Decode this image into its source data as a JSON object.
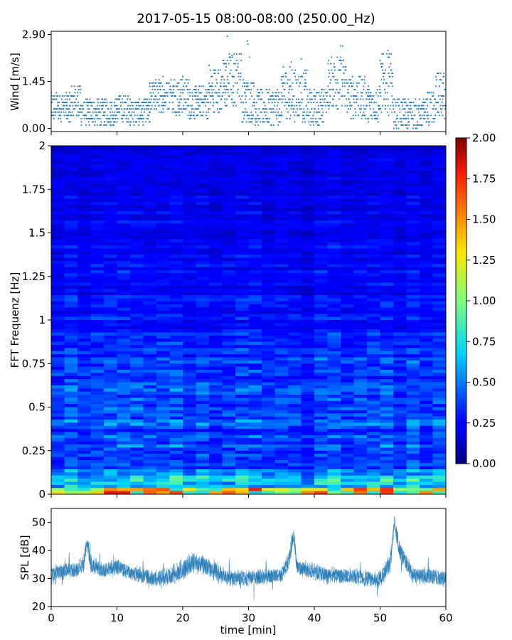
{
  "title": "2017-05-15 08:00-08:00 (250.00_Hz)",
  "chart_data": [
    {
      "type": "scatter",
      "panel": "wind",
      "ylabel": "Wind [m/s]",
      "xlim": [
        0,
        60
      ],
      "ylim": [
        -0.1,
        3.0
      ],
      "yticks": [
        "0.00",
        "1.45",
        "2.90"
      ],
      "color": "#1f77b4",
      "segments": [
        {
          "x0": 0,
          "x1": 3,
          "lo": 0.2,
          "hi": 1.1
        },
        {
          "x0": 3,
          "x1": 4.5,
          "lo": 0.3,
          "hi": 1.35
        },
        {
          "x0": 4.5,
          "x1": 10,
          "lo": 0.1,
          "hi": 0.9
        },
        {
          "x0": 10,
          "x1": 12,
          "lo": 0.2,
          "hi": 1.05
        },
        {
          "x0": 12,
          "x1": 15,
          "lo": 0.1,
          "hi": 0.9
        },
        {
          "x0": 15,
          "x1": 18,
          "lo": 0.5,
          "hi": 1.5
        },
        {
          "x0": 18,
          "x1": 21,
          "lo": 0.4,
          "hi": 1.6
        },
        {
          "x0": 21,
          "x1": 24,
          "lo": 0.3,
          "hi": 1.3
        },
        {
          "x0": 24,
          "x1": 26,
          "lo": 0.5,
          "hi": 1.9
        },
        {
          "x0": 26,
          "x1": 27,
          "lo": 0.6,
          "hi": 2.2
        },
        {
          "x0": 27,
          "x1": 29,
          "lo": 0.7,
          "hi": 2.4
        },
        {
          "x0": 29,
          "x1": 31,
          "lo": 0.2,
          "hi": 1.5
        },
        {
          "x0": 31,
          "x1": 35,
          "lo": 0.1,
          "hi": 1.2
        },
        {
          "x0": 35,
          "x1": 37,
          "lo": 0.3,
          "hi": 1.9
        },
        {
          "x0": 37,
          "x1": 39,
          "lo": 0.2,
          "hi": 1.8
        },
        {
          "x0": 39,
          "x1": 42,
          "lo": 0.1,
          "hi": 1.2
        },
        {
          "x0": 42,
          "x1": 45,
          "lo": 0.6,
          "hi": 2.2
        },
        {
          "x0": 45,
          "x1": 48,
          "lo": 0.3,
          "hi": 1.6
        },
        {
          "x0": 48,
          "x1": 50,
          "lo": 0.2,
          "hi": 1.3
        },
        {
          "x0": 50,
          "x1": 52,
          "lo": 0.4,
          "hi": 2.3
        },
        {
          "x0": 52,
          "x1": 57,
          "lo": 0.0,
          "hi": 0.9
        },
        {
          "x0": 57,
          "x1": 58.5,
          "lo": 0.1,
          "hi": 1.1
        },
        {
          "x0": 58.5,
          "x1": 60,
          "lo": 0.3,
          "hi": 1.7
        }
      ],
      "peaks": [
        {
          "x": 26.8,
          "y": 2.85
        },
        {
          "x": 27.5,
          "y": 2.25
        },
        {
          "x": 29.8,
          "y": 2.7
        },
        {
          "x": 29.9,
          "y": 2.6
        },
        {
          "x": 30.2,
          "y": 2.2
        },
        {
          "x": 36.5,
          "y": 2.05
        },
        {
          "x": 38.0,
          "y": 2.15
        },
        {
          "x": 43.0,
          "y": 1.9
        },
        {
          "x": 43.5,
          "y": 2.2
        },
        {
          "x": 44.0,
          "y": 2.55
        },
        {
          "x": 44.3,
          "y": 2.55
        },
        {
          "x": 51.2,
          "y": 2.4
        },
        {
          "x": 51.4,
          "y": 2.3
        },
        {
          "x": 24.0,
          "y": 1.95
        },
        {
          "x": 17.0,
          "y": 1.6
        }
      ]
    },
    {
      "type": "heatmap",
      "panel": "spectrogram",
      "ylabel": "FFT Frequenz [Hz]",
      "xlim": [
        0,
        60
      ],
      "ylim": [
        0,
        2
      ],
      "yticks": [
        "0",
        "0.25",
        "0.5",
        "0.75",
        "1",
        "1.25",
        "1.5",
        "1.75",
        "2"
      ],
      "colormap": "jet",
      "colorbar": {
        "min": 0,
        "max": 2,
        "ticks": [
          "0.00",
          "0.25",
          "0.50",
          "0.75",
          "1.00",
          "1.25",
          "1.50",
          "1.75",
          "2.00"
        ]
      },
      "bands": [
        {
          "f": 0.01,
          "level": 1.1
        },
        {
          "f": 0.05,
          "level": 0.6
        },
        {
          "f": 0.1,
          "level": 0.5
        },
        {
          "f": 0.2,
          "level": 0.4
        },
        {
          "f": 0.35,
          "level": 0.35
        },
        {
          "f": 0.55,
          "level": 0.4
        },
        {
          "f": 0.65,
          "level": 0.35
        },
        {
          "f": 1.0,
          "level": 0.25
        },
        {
          "f": 1.5,
          "level": 0.2
        },
        {
          "f": 2.0,
          "level": 0.15
        }
      ]
    },
    {
      "type": "line",
      "panel": "spl",
      "ylabel": "SPL [dB]",
      "xlabel": "time [min]",
      "xlim": [
        0,
        60
      ],
      "ylim": [
        20,
        55
      ],
      "xticks": [
        "0",
        "10",
        "20",
        "30",
        "40",
        "50",
        "60"
      ],
      "yticks": [
        "20",
        "30",
        "40",
        "50"
      ],
      "color": "#1f77b4",
      "x": [
        0,
        2,
        4,
        5,
        5.4,
        6,
        8,
        10,
        12,
        14,
        16,
        18,
        20,
        21.5,
        23,
        25,
        27,
        30,
        33,
        35,
        36.2,
        36.8,
        37.4,
        39,
        42,
        45,
        48,
        50,
        51.5,
        52.2,
        53,
        55,
        57,
        60
      ],
      "mean": [
        31,
        33,
        33,
        36,
        44,
        35,
        33,
        34,
        32,
        31,
        30,
        31,
        33,
        36,
        35,
        33,
        30,
        30,
        31,
        31,
        37,
        46,
        34,
        33,
        31,
        31,
        30,
        30,
        35,
        50,
        40,
        31,
        31,
        30
      ],
      "spread": [
        2.5,
        2.5,
        2.5,
        3,
        3,
        2.5,
        2.5,
        2.5,
        2.5,
        2.5,
        2.5,
        3,
        3,
        3.5,
        3,
        3,
        2.5,
        2.5,
        2.5,
        2.5,
        3,
        3,
        2.5,
        2.5,
        2.5,
        2.5,
        2.5,
        2.5,
        3,
        2.5,
        3,
        2.5,
        2.5,
        2.5
      ]
    }
  ]
}
